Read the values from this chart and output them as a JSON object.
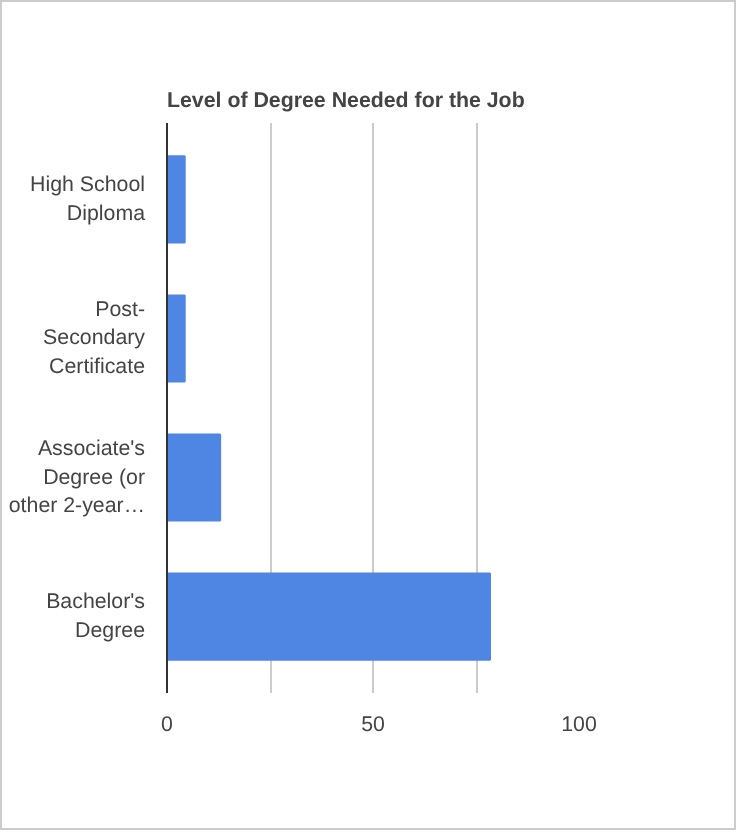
{
  "chart_data": {
    "type": "bar",
    "orientation": "horizontal",
    "title": "Level of Degree Needed for the Job",
    "categories": [
      "High School Diploma",
      "Post-Secondary Certificate",
      "Associate's Degree (or other 2-year…",
      "Bachelor's Degree"
    ],
    "values": [
      4.3,
      4.3,
      12.9,
      78.4
    ],
    "color": "#4f86e3",
    "xlim": [
      0,
      100
    ],
    "xticks": [
      0,
      {
        "value": 25,
        "label": null
      },
      50,
      {
        "value": 75,
        "label": null
      },
      100
    ],
    "grid": "x"
  }
}
